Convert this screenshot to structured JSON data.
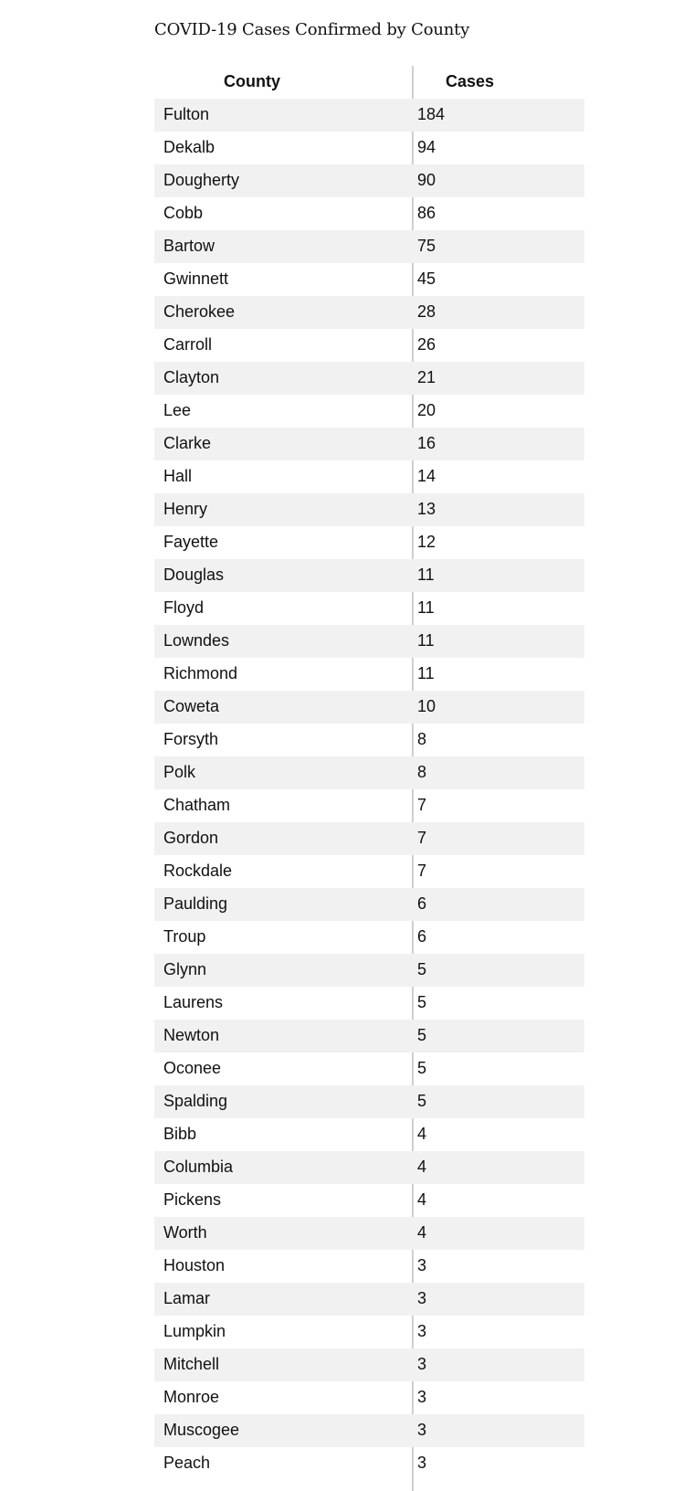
{
  "title": "COVID-19 Cases Confirmed by County",
  "headers": {
    "county": "County",
    "cases": "Cases"
  },
  "rows": [
    {
      "county": "Fulton",
      "cases": "184"
    },
    {
      "county": "Dekalb",
      "cases": "94"
    },
    {
      "county": "Dougherty",
      "cases": "90"
    },
    {
      "county": "Cobb",
      "cases": "86"
    },
    {
      "county": "Bartow",
      "cases": "75"
    },
    {
      "county": "Gwinnett",
      "cases": "45"
    },
    {
      "county": "Cherokee",
      "cases": "28"
    },
    {
      "county": "Carroll",
      "cases": "26"
    },
    {
      "county": "Clayton",
      "cases": "21"
    },
    {
      "county": "Lee",
      "cases": "20"
    },
    {
      "county": "Clarke",
      "cases": "16"
    },
    {
      "county": "Hall",
      "cases": "14"
    },
    {
      "county": "Henry",
      "cases": "13"
    },
    {
      "county": "Fayette",
      "cases": "12"
    },
    {
      "county": "Douglas",
      "cases": "11"
    },
    {
      "county": "Floyd",
      "cases": "11"
    },
    {
      "county": "Lowndes",
      "cases": "11"
    },
    {
      "county": "Richmond",
      "cases": "11"
    },
    {
      "county": "Coweta",
      "cases": "10"
    },
    {
      "county": "Forsyth",
      "cases": "8"
    },
    {
      "county": "Polk",
      "cases": "8"
    },
    {
      "county": "Chatham",
      "cases": "7"
    },
    {
      "county": "Gordon",
      "cases": "7"
    },
    {
      "county": "Rockdale",
      "cases": "7"
    },
    {
      "county": "Paulding",
      "cases": "6"
    },
    {
      "county": "Troup",
      "cases": "6"
    },
    {
      "county": "Glynn",
      "cases": "5"
    },
    {
      "county": "Laurens",
      "cases": "5"
    },
    {
      "county": "Newton",
      "cases": "5"
    },
    {
      "county": "Oconee",
      "cases": "5"
    },
    {
      "county": "Spalding",
      "cases": "5"
    },
    {
      "county": "Bibb",
      "cases": "4"
    },
    {
      "county": "Columbia",
      "cases": "4"
    },
    {
      "county": "Pickens",
      "cases": "4"
    },
    {
      "county": "Worth",
      "cases": "4"
    },
    {
      "county": "Houston",
      "cases": "3"
    },
    {
      "county": "Lamar",
      "cases": "3"
    },
    {
      "county": "Lumpkin",
      "cases": "3"
    },
    {
      "county": "Mitchell",
      "cases": "3"
    },
    {
      "county": "Monroe",
      "cases": "3"
    },
    {
      "county": "Muscogee",
      "cases": "3"
    },
    {
      "county": "Peach",
      "cases": "3"
    }
  ]
}
